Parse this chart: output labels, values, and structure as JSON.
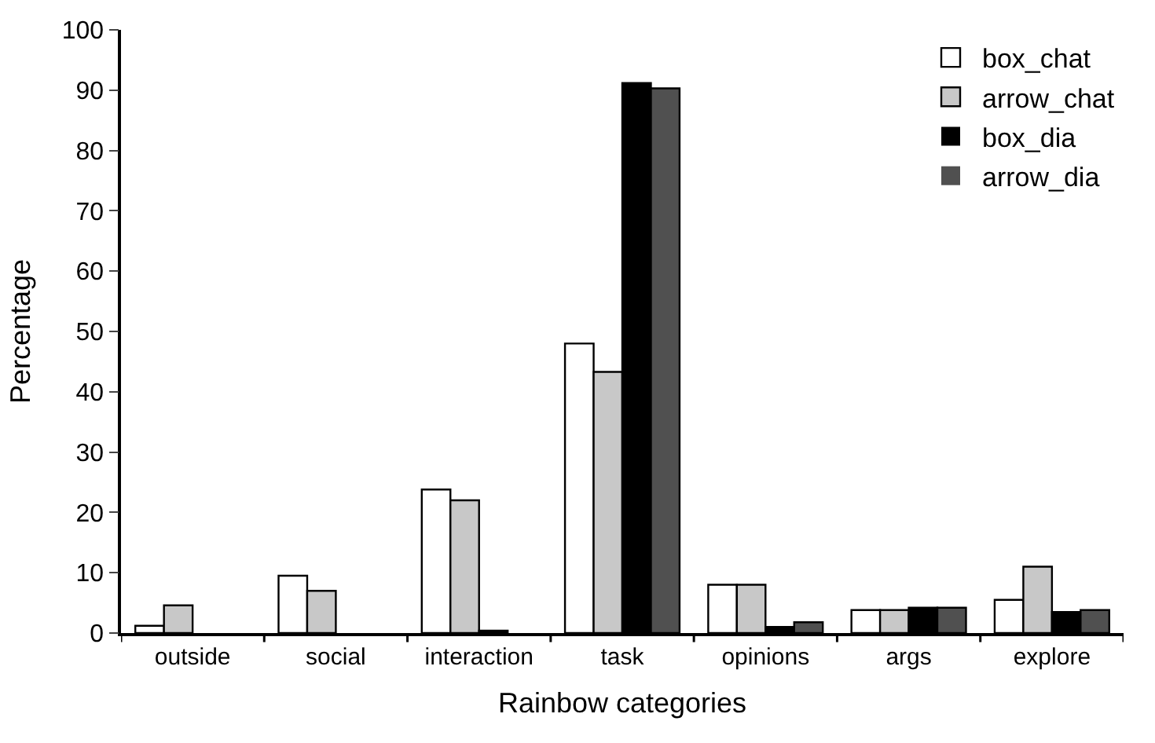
{
  "chart_data": {
    "type": "bar",
    "xlabel": "Rainbow categories",
    "ylabel": "Percentage",
    "categories": [
      "outside",
      "social",
      "interaction",
      "task",
      "opinions",
      "args",
      "explore"
    ],
    "series": [
      {
        "name": "box_chat",
        "color": "#ffffff",
        "values": [
          1.2,
          9.5,
          23.8,
          48,
          8,
          3.8,
          5.5
        ]
      },
      {
        "name": "arrow_chat",
        "color": "#c8c8c8",
        "values": [
          4.6,
          7,
          22,
          43.3,
          8,
          3.8,
          11
        ]
      },
      {
        "name": "box_dia",
        "color": "#000000",
        "values": [
          0,
          0,
          0.4,
          91.2,
          1,
          4.2,
          3.5
        ]
      },
      {
        "name": "arrow_dia",
        "color": "#505050",
        "values": [
          0,
          0,
          0,
          90.3,
          1.8,
          4.2,
          3.8
        ]
      }
    ],
    "ylim": [
      0,
      100
    ],
    "yticks": [
      0,
      10,
      20,
      30,
      40,
      50,
      60,
      70,
      80,
      90,
      100
    ],
    "legend": "top right"
  }
}
